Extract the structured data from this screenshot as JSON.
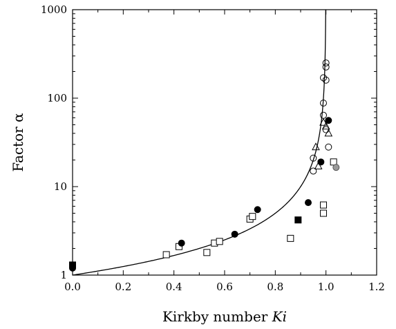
{
  "chart_data": {
    "type": "scatter",
    "title": "",
    "xlabel": "Kirkby number",
    "xlabel_symbol": "Ki",
    "ylabel": "Factor α",
    "xlim": [
      0,
      1.2
    ],
    "ylim": [
      1,
      1000
    ],
    "yscale": "log",
    "grid": false,
    "legend": "none",
    "x_ticks": [
      "0.0",
      "0.2",
      "0.4",
      "0.6",
      "0.8",
      "1.0",
      "1.2"
    ],
    "y_ticks": [
      "1",
      "10",
      "100",
      "1000"
    ],
    "curve": {
      "type": "line",
      "equation": "alpha = 1/(1-Ki)",
      "color": "#000000"
    },
    "series": [
      {
        "marker": "open-square",
        "points": [
          [
            0.37,
            1.7
          ],
          [
            0.42,
            2.1
          ],
          [
            0.53,
            1.8
          ],
          [
            0.56,
            2.3
          ],
          [
            0.58,
            2.4
          ],
          [
            0.7,
            4.3
          ],
          [
            0.71,
            4.6
          ],
          [
            0.86,
            2.6
          ],
          [
            0.99,
            6.2
          ],
          [
            0.99,
            5.0
          ],
          [
            1.03,
            19.0
          ]
        ]
      },
      {
        "marker": "filled-square",
        "points": [
          [
            0.0,
            1.3
          ],
          [
            0.89,
            4.2
          ]
        ]
      },
      {
        "marker": "filled-circle",
        "points": [
          [
            0.0,
            1.2
          ],
          [
            0.43,
            2.3
          ],
          [
            0.64,
            2.9
          ],
          [
            0.73,
            5.5
          ],
          [
            0.93,
            6.6
          ],
          [
            0.98,
            19.0
          ],
          [
            1.01,
            56.0
          ]
        ]
      },
      {
        "marker": "open-circle",
        "points": [
          [
            0.95,
            15.0
          ],
          [
            0.95,
            21.0
          ],
          [
            0.99,
            88.0
          ],
          [
            0.99,
            64.0
          ],
          [
            0.99,
            170.0
          ],
          [
            1.0,
            160.0
          ],
          [
            1.0,
            250.0
          ],
          [
            1.0,
            225.0
          ],
          [
            1.0,
            44.0
          ],
          [
            1.01,
            28.0
          ]
        ]
      },
      {
        "marker": "open-triangle",
        "points": [
          [
            0.96,
            28.0
          ],
          [
            0.97,
            17.0
          ],
          [
            0.99,
            53.0
          ],
          [
            1.0,
            48.0
          ],
          [
            1.01,
            40.0
          ]
        ]
      },
      {
        "marker": "gray-circle",
        "points": [
          [
            1.04,
            16.5
          ]
        ]
      }
    ]
  }
}
